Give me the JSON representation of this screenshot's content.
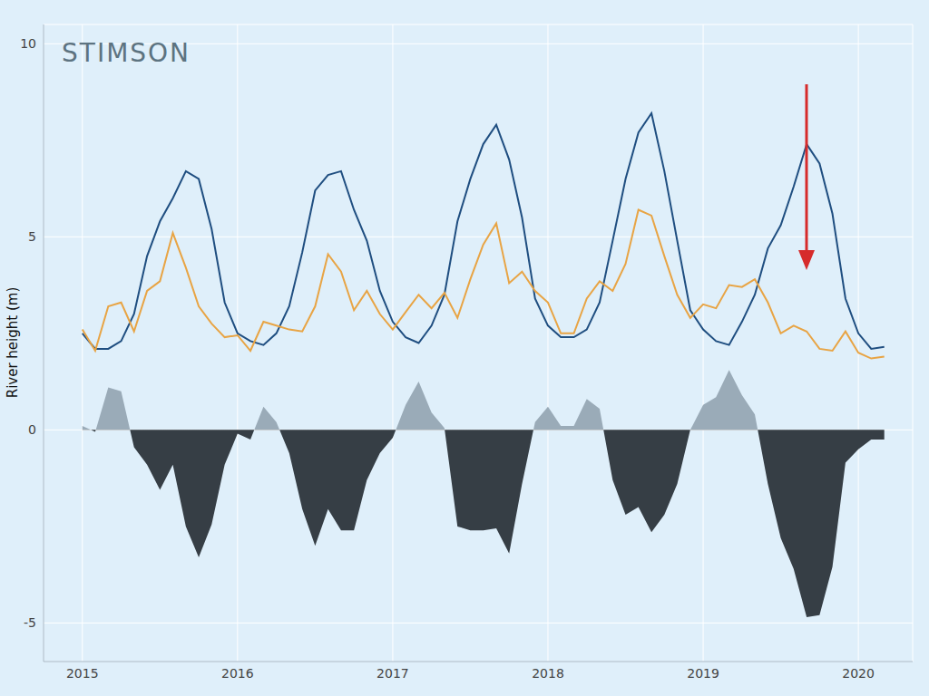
{
  "chart_data": {
    "type": "line",
    "source": "STIMSON",
    "y_label": "River height (m)",
    "x": [
      2015,
      2015.083,
      2015.167,
      2015.25,
      2015.333,
      2015.417,
      2015.5,
      2015.583,
      2015.667,
      2015.75,
      2015.833,
      2015.917,
      2016,
      2016.083,
      2016.167,
      2016.25,
      2016.333,
      2016.417,
      2016.5,
      2016.583,
      2016.667,
      2016.75,
      2016.833,
      2016.917,
      2017,
      2017.083,
      2017.167,
      2017.25,
      2017.333,
      2017.417,
      2017.5,
      2017.583,
      2017.667,
      2017.75,
      2017.833,
      2017.917,
      2018,
      2018.083,
      2018.167,
      2018.25,
      2018.333,
      2018.417,
      2018.5,
      2018.583,
      2018.667,
      2018.75,
      2018.833,
      2018.917,
      2019,
      2019.083,
      2019.167,
      2019.25,
      2019.333,
      2019.417,
      2019.5,
      2019.583,
      2019.667,
      2019.75,
      2019.833,
      2019.917,
      2020,
      2020.083,
      2020.167
    ],
    "series": [
      {
        "color": "#1f4e80",
        "values": [
          2.5,
          2.1,
          2.1,
          2.3,
          3.0,
          4.5,
          5.4,
          6.0,
          6.7,
          6.5,
          5.2,
          3.3,
          2.5,
          2.3,
          2.2,
          2.5,
          3.2,
          4.6,
          6.2,
          6.6,
          6.7,
          5.7,
          4.9,
          3.6,
          2.8,
          2.4,
          2.25,
          2.7,
          3.5,
          5.4,
          6.5,
          7.4,
          7.9,
          7.0,
          5.5,
          3.4,
          2.7,
          2.4,
          2.4,
          2.6,
          3.3,
          4.9,
          6.5,
          7.7,
          8.2,
          6.7,
          4.9,
          3.1,
          2.6,
          2.3,
          2.2,
          2.8,
          3.5,
          4.7,
          5.3,
          6.3,
          7.4,
          6.9,
          5.6,
          3.4,
          2.5,
          2.1,
          2.15
        ]
      },
      {
        "color": "#e8a444",
        "values": [
          2.6,
          2.05,
          3.2,
          3.3,
          2.55,
          3.6,
          3.85,
          5.1,
          4.2,
          3.2,
          2.75,
          2.4,
          2.45,
          2.05,
          2.8,
          2.7,
          2.6,
          2.55,
          3.2,
          4.55,
          4.1,
          3.1,
          3.6,
          3.0,
          2.6,
          3.05,
          3.5,
          3.15,
          3.55,
          2.9,
          3.9,
          4.8,
          5.35,
          3.8,
          4.1,
          3.6,
          3.3,
          2.5,
          2.5,
          3.4,
          3.85,
          3.6,
          4.3,
          5.7,
          5.55,
          4.5,
          3.5,
          2.9,
          3.25,
          3.15,
          3.75,
          3.7,
          3.9,
          3.3,
          2.5,
          2.7,
          2.55,
          2.1,
          2.05,
          2.55,
          2.0,
          1.85,
          1.9
        ]
      },
      {
        "type": "area",
        "color": "#363e45",
        "values": [
          0.1,
          -0.05,
          1.1,
          1.0,
          -0.45,
          -0.9,
          -1.55,
          -0.9,
          -2.5,
          -3.3,
          -2.45,
          -0.9,
          -0.1,
          -0.25,
          0.6,
          0.2,
          -0.6,
          -2.05,
          -3.0,
          -2.05,
          -2.6,
          -2.6,
          -1.3,
          -0.6,
          -0.2,
          0.65,
          1.25,
          0.45,
          0.05,
          -2.5,
          -2.6,
          -2.6,
          -2.55,
          -3.2,
          -1.4,
          0.2,
          0.6,
          0.1,
          0.1,
          0.8,
          0.55,
          -1.3,
          -2.2,
          -2.0,
          -2.65,
          -2.2,
          -1.4,
          0.0,
          0.65,
          0.85,
          1.55,
          0.9,
          0.4,
          -1.4,
          -2.8,
          -3.6,
          -4.85,
          -4.8,
          -3.55,
          -0.85,
          -0.5,
          -0.25,
          -0.25
        ]
      }
    ],
    "xlim": [
      2014.75,
      2020.35
    ],
    "xticks": [
      2015,
      2016,
      2017,
      2018,
      2019,
      2020
    ],
    "ylim": [
      -6,
      10.5
    ],
    "yticks": [
      -5,
      0,
      5,
      10
    ],
    "grid": true
  }
}
